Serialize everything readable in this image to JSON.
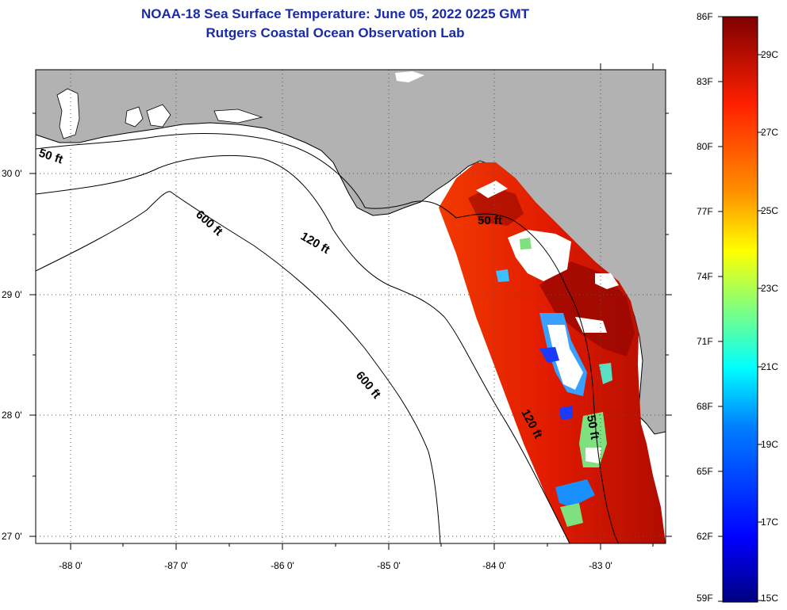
{
  "header": {
    "title": "NOAA-18 Sea Surface Temperature:  June 05, 2022 0225 GMT",
    "subtitle": "Rutgers Coastal Ocean Observation Lab"
  },
  "map": {
    "lon_ticks": [
      "-88 0'",
      "-87 0'",
      "-86 0'",
      "-85 0'",
      "-84 0'",
      "-83 0'"
    ],
    "lat_ticks": [
      "30 0'",
      "29 0'",
      "28 0'",
      "27 0'"
    ],
    "contours": [
      "50 ft",
      "600 ft",
      "120 ft",
      "50 ft",
      "600 ft",
      "120 ft",
      "50 ft"
    ],
    "land_color": "#b2b2b2",
    "water_color": "#ffffff"
  },
  "colorbar": {
    "fahrenheit": [
      "86F",
      "83F",
      "80F",
      "77F",
      "74F",
      "71F",
      "68F",
      "65F",
      "62F",
      "59F"
    ],
    "celsius": [
      "29C",
      "27C",
      "25C",
      "23C",
      "21C",
      "19C",
      "17C",
      "15C"
    ],
    "range_f": [
      59,
      86
    ],
    "colors": [
      "#00007f",
      "#0000ff",
      "#007fff",
      "#00ffff",
      "#7fff7f",
      "#ffff00",
      "#ff7f00",
      "#ff0000",
      "#7f0000"
    ]
  }
}
